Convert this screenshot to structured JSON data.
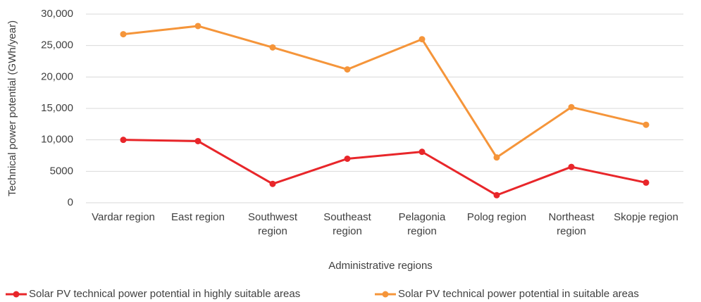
{
  "chart_data": {
    "type": "line",
    "y_label": "Technical power potential (GWh/year)",
    "x_label": "Administrative regions",
    "categories": [
      "Vardar region",
      "East region",
      "Southwest region",
      "Southeast region",
      "Pelagonia region",
      "Polog region",
      "Northeast region",
      "Skopje region"
    ],
    "series": [
      {
        "name": "Solar PV technical power potential in highly suitable areas",
        "color": "#e8262a",
        "values": [
          10000,
          9800,
          3000,
          7000,
          8100,
          1200,
          5700,
          3200
        ]
      },
      {
        "name": "Solar PV technical power potential in suitable areas",
        "color": "#f5953a",
        "values": [
          26800,
          28100,
          24700,
          21200,
          26000,
          7200,
          15200,
          12400
        ]
      }
    ],
    "ylim": [
      0,
      30000
    ],
    "yticks": [
      0,
      5000,
      {
        "value": 10000,
        "label": "10,000"
      },
      {
        "value": 15000,
        "label": "15,000"
      },
      {
        "value": 20000,
        "label": "20,000"
      },
      {
        "value": 25000,
        "label": "25,000"
      },
      {
        "value": 30000,
        "label": "30,000"
      }
    ],
    "grid": true,
    "legend": "bottom"
  }
}
